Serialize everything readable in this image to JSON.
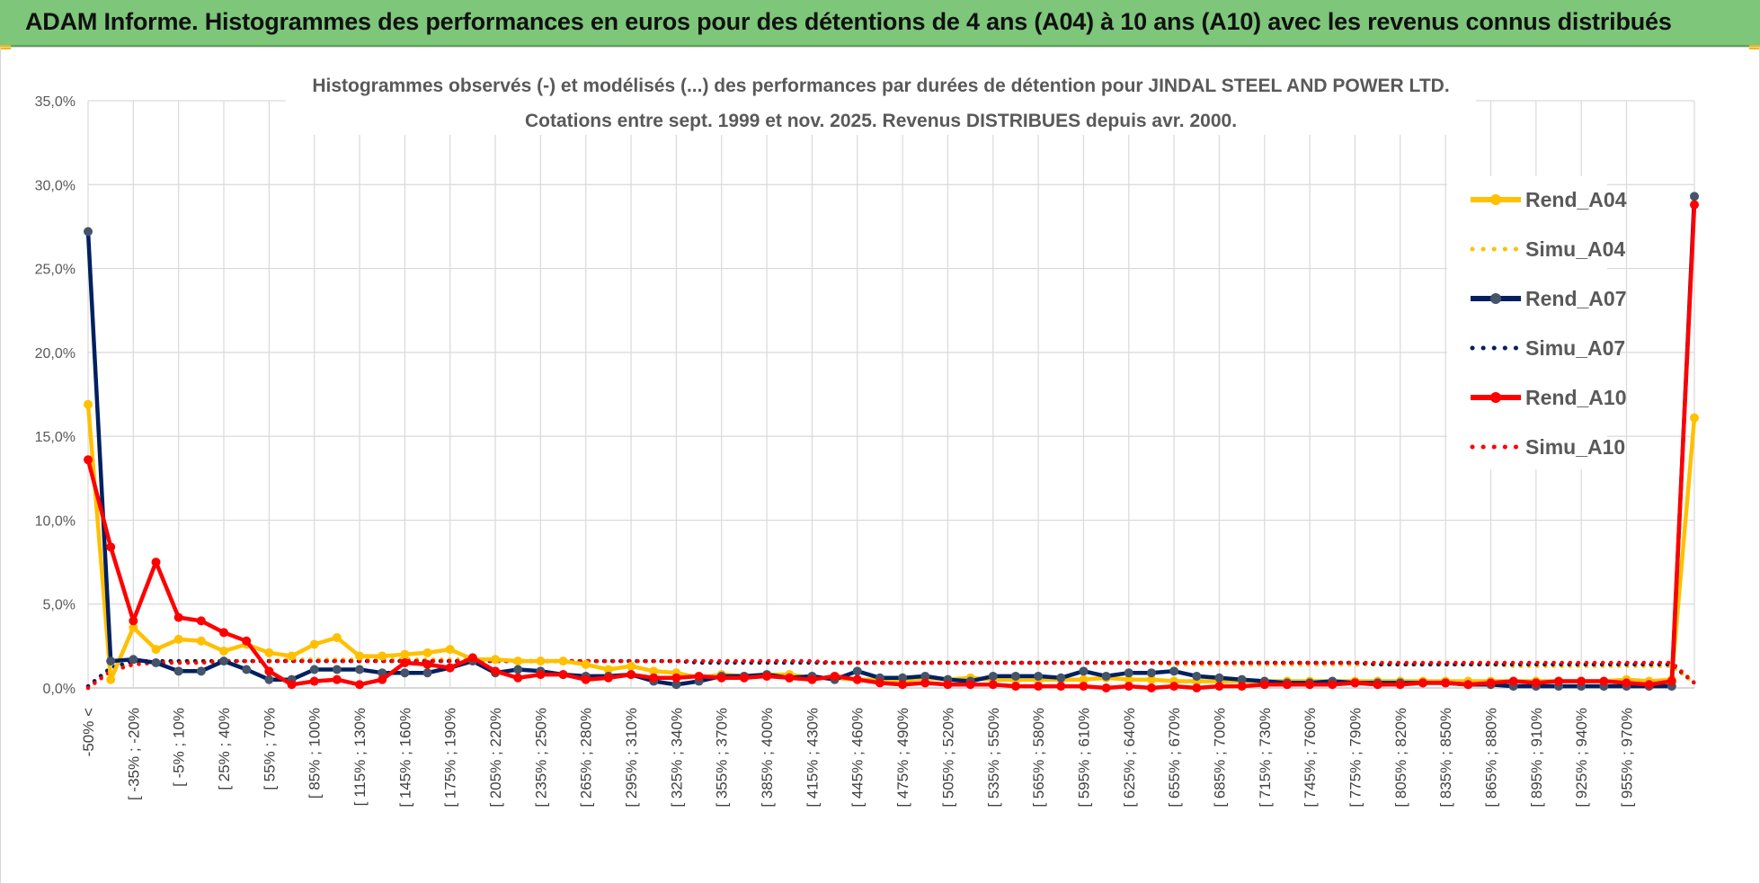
{
  "header": {
    "title": "ADAM Informe. Histogrammes des performances en euros pour des détentions de 4 ans (A04) à 10 ans (A10) avec les revenus connus distribués"
  },
  "colors": {
    "banner": "#7dc67a",
    "A04": "#ffc000",
    "A07": "#002060",
    "A07_marker": "#44546a",
    "A10": "#ff0000",
    "grid": "#d9d9d9"
  },
  "chart_data": {
    "type": "line",
    "title": "Histogrammes observés (-) et modélisés (...) des performances par durées de détention pour JINDAL STEEL AND POWER LTD.",
    "subtitle": "Cotations entre sept. 1999 et nov. 2025. Revenus DISTRIBUES depuis avr. 2000.",
    "ylim": [
      0,
      35
    ],
    "y_ticks": [
      "0,0%",
      "5,0%",
      "10,0%",
      "15,0%",
      "20,0%",
      "25,0%",
      "30,0%",
      "35,0%"
    ],
    "grid": true,
    "legend_position": "right",
    "x_labels": [
      "-50% <",
      "[ -35% ; -20%",
      "[ -5% ; 10%",
      "[ 25% ; 40%",
      "[ 55% ; 70%",
      "[ 85% ; 100%",
      "[ 115% ; 130%",
      "[ 145% ; 160%",
      "[ 175% ; 190%",
      "[ 205% ; 220%",
      "[ 235% ; 250%",
      "[ 265% ; 280%",
      "[ 295% ; 310%",
      "[ 325% ; 340%",
      "[ 355% ; 370%",
      "[ 385% ; 400%",
      "[ 415% ; 430%",
      "[ 445% ; 460%",
      "[ 475% ; 490%",
      "[ 505% ; 520%",
      "[ 535% ; 550%",
      "[ 565% ; 580%",
      "[ 595% ; 610%",
      "[ 625% ; 640%",
      "[ 655% ; 670%",
      "[ 685% ; 700%",
      "[ 715% ; 730%",
      "[ 745% ; 760%",
      "[ 775% ; 790%",
      "[ 805% ; 820%",
      "[ 835% ; 850%",
      "[ 865% ; 880%",
      "[ 895% ; 910%",
      "[ 925% ; 940%",
      "[ 955% ; 970%"
    ],
    "series": [
      {
        "name": "Rend_A04",
        "style": "solid",
        "color": "#ffc000",
        "values": [
          16.9,
          0.5,
          3.6,
          2.3,
          2.9,
          2.8,
          2.2,
          2.6,
          2.1,
          1.9,
          2.6,
          3.0,
          1.9,
          1.9,
          2.0,
          2.1,
          2.3,
          1.7,
          1.7,
          1.6,
          1.6,
          1.6,
          1.4,
          1.1,
          1.3,
          1.0,
          0.9,
          0.6,
          0.8,
          0.7,
          0.8,
          0.8,
          0.6,
          0.6,
          0.5,
          0.5,
          0.4,
          0.6,
          0.5,
          0.6,
          0.5,
          0.5,
          0.5,
          0.5,
          0.5,
          0.6,
          0.5,
          0.5,
          0.4,
          0.4,
          0.4,
          0.4,
          0.4,
          0.4,
          0.4,
          0.4,
          0.4,
          0.4,
          0.4,
          0.4,
          0.4,
          0.4,
          0.4,
          0.4,
          0.4,
          0.4,
          0.4,
          0.4,
          0.5,
          0.4,
          0.5,
          16.1
        ]
      },
      {
        "name": "Simu_A04",
        "style": "dotted",
        "color": "#ffc000",
        "values": [
          0.1,
          1.1,
          1.5,
          1.6,
          1.6,
          1.6,
          1.6,
          1.6,
          1.6,
          1.7,
          1.7,
          1.7,
          1.7,
          1.7,
          1.7,
          1.7,
          1.7,
          1.7,
          1.6,
          1.6,
          1.6,
          1.6,
          1.6,
          1.6,
          1.6,
          1.6,
          1.6,
          1.6,
          1.6,
          1.6,
          1.6,
          1.6,
          1.6,
          1.5,
          1.5,
          1.5,
          1.5,
          1.5,
          1.5,
          1.5,
          1.5,
          1.5,
          1.5,
          1.5,
          1.5,
          1.5,
          1.5,
          1.5,
          1.4,
          1.4,
          1.4,
          1.4,
          1.4,
          1.4,
          1.4,
          1.4,
          1.4,
          1.4,
          1.4,
          1.4,
          1.4,
          1.4,
          1.4,
          1.3,
          1.3,
          1.3,
          1.3,
          1.3,
          1.3,
          1.3,
          1.3,
          0.3
        ]
      },
      {
        "name": "Rend_A07",
        "style": "solid",
        "color": "#002060",
        "values": [
          27.2,
          1.6,
          1.7,
          1.5,
          1.0,
          1.0,
          1.6,
          1.1,
          0.5,
          0.5,
          1.1,
          1.1,
          1.1,
          0.9,
          0.9,
          0.9,
          1.2,
          1.6,
          0.9,
          1.1,
          1.0,
          0.8,
          0.7,
          0.7,
          0.8,
          0.4,
          0.2,
          0.4,
          0.7,
          0.7,
          0.8,
          0.6,
          0.7,
          0.5,
          1.0,
          0.6,
          0.6,
          0.7,
          0.5,
          0.4,
          0.7,
          0.7,
          0.7,
          0.6,
          1.0,
          0.7,
          0.9,
          0.9,
          1.0,
          0.7,
          0.6,
          0.5,
          0.4,
          0.3,
          0.3,
          0.4,
          0.3,
          0.3,
          0.3,
          0.3,
          0.3,
          0.2,
          0.2,
          0.1,
          0.1,
          0.1,
          0.1,
          0.1,
          0.1,
          0.1,
          0.1,
          29.3
        ]
      },
      {
        "name": "Simu_A07",
        "style": "dotted",
        "color": "#002060",
        "values": [
          0.1,
          1.2,
          1.6,
          1.6,
          1.6,
          1.6,
          1.6,
          1.6,
          1.6,
          1.6,
          1.6,
          1.6,
          1.6,
          1.6,
          1.6,
          1.6,
          1.6,
          1.6,
          1.6,
          1.6,
          1.6,
          1.6,
          1.6,
          1.6,
          1.6,
          1.6,
          1.6,
          1.5,
          1.5,
          1.5,
          1.5,
          1.5,
          1.5,
          1.5,
          1.5,
          1.5,
          1.5,
          1.5,
          1.5,
          1.5,
          1.5,
          1.5,
          1.5,
          1.5,
          1.5,
          1.5,
          1.5,
          1.5,
          1.5,
          1.5,
          1.5,
          1.5,
          1.5,
          1.5,
          1.5,
          1.5,
          1.5,
          1.4,
          1.4,
          1.4,
          1.4,
          1.4,
          1.4,
          1.4,
          1.4,
          1.4,
          1.4,
          1.4,
          1.4,
          1.4,
          1.4,
          0.3
        ]
      },
      {
        "name": "Rend_A10",
        "style": "solid",
        "color": "#ff0000",
        "values": [
          13.6,
          8.4,
          4.0,
          7.5,
          4.2,
          4.0,
          3.3,
          2.8,
          1.0,
          0.2,
          0.4,
          0.5,
          0.2,
          0.5,
          1.5,
          1.4,
          1.2,
          1.8,
          1.0,
          0.6,
          0.8,
          0.8,
          0.5,
          0.6,
          0.8,
          0.6,
          0.6,
          0.7,
          0.6,
          0.6,
          0.7,
          0.6,
          0.5,
          0.7,
          0.5,
          0.3,
          0.2,
          0.3,
          0.2,
          0.2,
          0.2,
          0.1,
          0.1,
          0.1,
          0.1,
          0.0,
          0.1,
          0.0,
          0.1,
          0.0,
          0.1,
          0.1,
          0.2,
          0.2,
          0.2,
          0.2,
          0.3,
          0.2,
          0.2,
          0.3,
          0.3,
          0.2,
          0.3,
          0.4,
          0.3,
          0.4,
          0.4,
          0.4,
          0.3,
          0.2,
          0.4,
          28.8
        ]
      },
      {
        "name": "Simu_A10",
        "style": "dotted",
        "color": "#ff0000",
        "values": [
          0.0,
          1.0,
          1.4,
          1.5,
          1.5,
          1.5,
          1.6,
          1.6,
          1.6,
          1.6,
          1.6,
          1.6,
          1.6,
          1.6,
          1.6,
          1.6,
          1.6,
          1.6,
          1.6,
          1.6,
          1.6,
          1.6,
          1.6,
          1.6,
          1.6,
          1.6,
          1.6,
          1.6,
          1.6,
          1.6,
          1.6,
          1.6,
          1.6,
          1.5,
          1.5,
          1.5,
          1.5,
          1.5,
          1.5,
          1.5,
          1.5,
          1.5,
          1.5,
          1.5,
          1.5,
          1.5,
          1.5,
          1.5,
          1.5,
          1.5,
          1.5,
          1.5,
          1.5,
          1.5,
          1.5,
          1.5,
          1.5,
          1.5,
          1.5,
          1.5,
          1.5,
          1.5,
          1.5,
          1.5,
          1.5,
          1.5,
          1.5,
          1.5,
          1.5,
          1.5,
          1.5,
          0.3
        ]
      }
    ]
  }
}
